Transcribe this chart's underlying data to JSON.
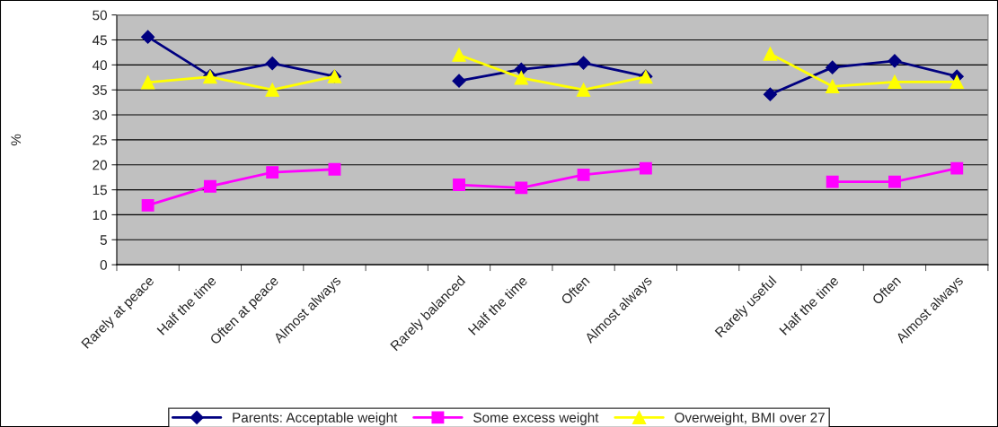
{
  "chart_data": {
    "type": "line",
    "ylabel": "%",
    "categories": [
      "Rarely at peace",
      "Half the time",
      "Often at peace",
      "Almost always",
      null,
      "Rarely balanced",
      "Half the time",
      "Often",
      "Almost always",
      null,
      "Rarely useful",
      "Half the time",
      "Often",
      "Almost always"
    ],
    "series": [
      {
        "name": "Parents: Acceptable weight",
        "color": "#000080",
        "marker": "diamond",
        "values": [
          45.6,
          37.8,
          40.3,
          37.7,
          null,
          36.8,
          39.1,
          40.4,
          37.7,
          null,
          34.1,
          39.5,
          40.8,
          37.7
        ]
      },
      {
        "name": "Some excess weight",
        "color": "#ff00ff",
        "marker": "square",
        "values": [
          11.9,
          15.7,
          18.5,
          19.1,
          null,
          16.0,
          15.4,
          18.0,
          19.3,
          null,
          null,
          16.6,
          16.6,
          19.3
        ]
      },
      {
        "name": "Overweight, BMI over 27",
        "color": "#ffff00",
        "marker": "triangle",
        "values": [
          36.5,
          37.6,
          35.0,
          37.7,
          null,
          42.0,
          37.4,
          35.0,
          37.6,
          null,
          42.2,
          35.7,
          36.6,
          36.6
        ]
      }
    ],
    "ylim": [
      0,
      50
    ],
    "yticks": [
      0,
      5,
      10,
      15,
      20,
      25,
      30,
      35,
      40,
      45,
      50
    ],
    "grid": "y",
    "legend": "bottom",
    "line_style": "solid"
  }
}
